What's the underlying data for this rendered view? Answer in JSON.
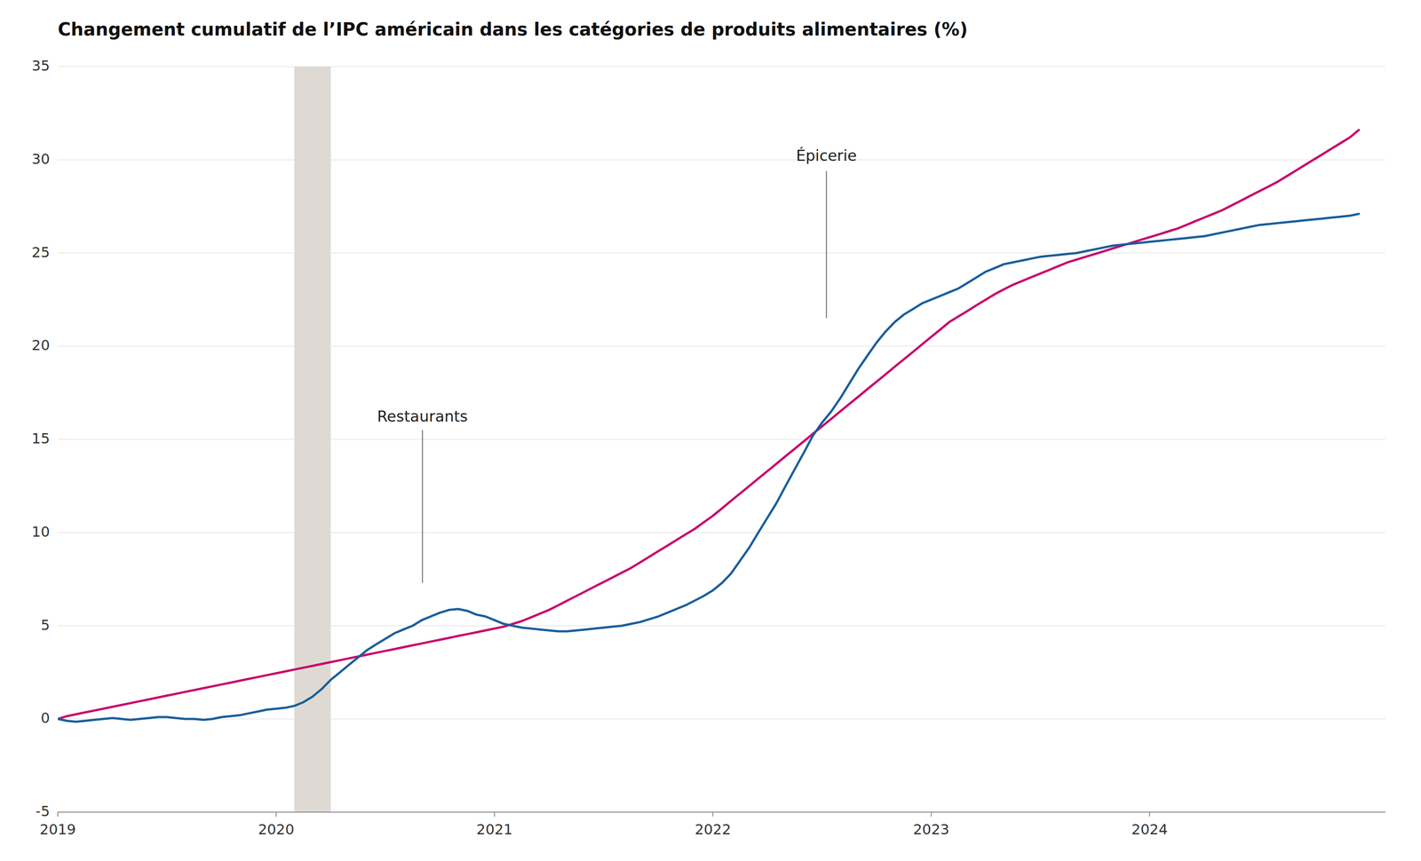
{
  "chart_data": {
    "type": "line",
    "title": "Changement cumulatif de l’IPC américain dans les catégories de produits alimentaires (%)",
    "xlim": [
      2019.0,
      2025.08
    ],
    "xticks": [
      2019,
      2020,
      2021,
      2022,
      2023,
      2024
    ],
    "ylim": [
      -5,
      35
    ],
    "yticks": [
      -5,
      0,
      5,
      10,
      15,
      20,
      25,
      30,
      35
    ],
    "grid": true,
    "spans": [
      {
        "x0": 2020.083,
        "x1": 2020.25,
        "color": "#DEDAD3"
      }
    ],
    "annotations": [
      {
        "text": "Restaurants",
        "x": 2020.67,
        "y": 15.8,
        "line": [
          7.3,
          15.5
        ]
      },
      {
        "text": "Épicerie",
        "x": 2022.52,
        "y": 29.8,
        "line": [
          21.5,
          29.4
        ]
      }
    ],
    "x": [
      2019.0,
      2019.042,
      2019.083,
      2019.125,
      2019.167,
      2019.208,
      2019.25,
      2019.292,
      2019.333,
      2019.375,
      2019.417,
      2019.458,
      2019.5,
      2019.542,
      2019.583,
      2019.625,
      2019.667,
      2019.708,
      2019.75,
      2019.792,
      2019.833,
      2019.875,
      2019.917,
      2019.958,
      2020.0,
      2020.042,
      2020.083,
      2020.125,
      2020.167,
      2020.208,
      2020.25,
      2020.292,
      2020.333,
      2020.375,
      2020.417,
      2020.458,
      2020.5,
      2020.542,
      2020.583,
      2020.625,
      2020.667,
      2020.708,
      2020.75,
      2020.792,
      2020.833,
      2020.875,
      2020.917,
      2020.958,
      2021.0,
      2021.042,
      2021.083,
      2021.125,
      2021.167,
      2021.208,
      2021.25,
      2021.292,
      2021.333,
      2021.375,
      2021.417,
      2021.458,
      2021.5,
      2021.542,
      2021.583,
      2021.625,
      2021.667,
      2021.708,
      2021.75,
      2021.792,
      2021.833,
      2021.875,
      2021.917,
      2021.958,
      2022.0,
      2022.042,
      2022.083,
      2022.125,
      2022.167,
      2022.208,
      2022.25,
      2022.292,
      2022.333,
      2022.375,
      2022.417,
      2022.458,
      2022.5,
      2022.542,
      2022.583,
      2022.625,
      2022.667,
      2022.708,
      2022.75,
      2022.792,
      2022.833,
      2022.875,
      2022.917,
      2022.958,
      2023.0,
      2023.042,
      2023.083,
      2023.125,
      2023.167,
      2023.208,
      2023.25,
      2023.292,
      2023.333,
      2023.375,
      2023.417,
      2023.458,
      2023.5,
      2023.542,
      2023.583,
      2023.625,
      2023.667,
      2023.708,
      2023.75,
      2023.792,
      2023.833,
      2023.875,
      2023.917,
      2023.958,
      2024.0,
      2024.042,
      2024.083,
      2024.125,
      2024.167,
      2024.208,
      2024.25,
      2024.292,
      2024.333,
      2024.375,
      2024.417,
      2024.458,
      2024.5,
      2024.542,
      2024.583,
      2024.625,
      2024.667,
      2024.708,
      2024.75,
      2024.792,
      2024.833,
      2024.875,
      2024.917,
      2024.958
    ],
    "series": [
      {
        "color": "#C8006A",
        "values": [
          0.0,
          0.15,
          0.25,
          0.35,
          0.45,
          0.55,
          0.65,
          0.75,
          0.85,
          0.95,
          1.05,
          1.15,
          1.25,
          1.35,
          1.45,
          1.55,
          1.65,
          1.75,
          1.85,
          1.95,
          2.05,
          2.15,
          2.25,
          2.35,
          2.45,
          2.55,
          2.65,
          2.75,
          2.85,
          2.95,
          3.05,
          3.15,
          3.25,
          3.35,
          3.45,
          3.55,
          3.65,
          3.75,
          3.85,
          3.95,
          4.05,
          4.15,
          4.25,
          4.35,
          4.45,
          4.55,
          4.65,
          4.75,
          4.85,
          4.95,
          5.1,
          5.25,
          5.45,
          5.65,
          5.85,
          6.1,
          6.35,
          6.6,
          6.85,
          7.1,
          7.35,
          7.6,
          7.85,
          8.1,
          8.4,
          8.7,
          9.0,
          9.3,
          9.6,
          9.9,
          10.2,
          10.55,
          10.9,
          11.3,
          11.7,
          12.1,
          12.5,
          12.9,
          13.3,
          13.7,
          14.1,
          14.5,
          14.9,
          15.3,
          15.7,
          16.1,
          16.5,
          16.9,
          17.3,
          17.7,
          18.1,
          18.5,
          18.9,
          19.3,
          19.7,
          20.1,
          20.5,
          20.9,
          21.3,
          21.6,
          21.9,
          22.2,
          22.5,
          22.8,
          23.05,
          23.3,
          23.5,
          23.7,
          23.9,
          24.1,
          24.3,
          24.5,
          24.65,
          24.8,
          24.95,
          25.1,
          25.25,
          25.4,
          25.55,
          25.7,
          25.85,
          26.0,
          26.15,
          26.3,
          26.5,
          26.7,
          26.9,
          27.1,
          27.3,
          27.55,
          27.8,
          28.05,
          28.3,
          28.55,
          28.8,
          29.1,
          29.4,
          29.7,
          30.0,
          30.3,
          30.6,
          30.9,
          31.2,
          31.6
        ]
      },
      {
        "color": "#1A5E9A",
        "values": [
          0.0,
          -0.1,
          -0.15,
          -0.1,
          -0.05,
          0.0,
          0.05,
          0.0,
          -0.05,
          0.0,
          0.05,
          0.1,
          0.1,
          0.05,
          0.0,
          0.0,
          -0.05,
          0.0,
          0.1,
          0.15,
          0.2,
          0.3,
          0.4,
          0.5,
          0.55,
          0.6,
          0.7,
          0.9,
          1.2,
          1.6,
          2.1,
          2.5,
          2.9,
          3.3,
          3.7,
          4.0,
          4.3,
          4.6,
          4.8,
          5.0,
          5.3,
          5.5,
          5.7,
          5.85,
          5.9,
          5.8,
          5.6,
          5.5,
          5.3,
          5.1,
          5.0,
          4.9,
          4.85,
          4.8,
          4.75,
          4.7,
          4.7,
          4.75,
          4.8,
          4.85,
          4.9,
          4.95,
          5.0,
          5.1,
          5.2,
          5.35,
          5.5,
          5.7,
          5.9,
          6.1,
          6.35,
          6.6,
          6.9,
          7.3,
          7.8,
          8.5,
          9.2,
          10.0,
          10.8,
          11.6,
          12.5,
          13.4,
          14.3,
          15.2,
          15.9,
          16.5,
          17.2,
          18.0,
          18.8,
          19.5,
          20.2,
          20.8,
          21.3,
          21.7,
          22.0,
          22.3,
          22.5,
          22.7,
          22.9,
          23.1,
          23.4,
          23.7,
          24.0,
          24.2,
          24.4,
          24.5,
          24.6,
          24.7,
          24.8,
          24.85,
          24.9,
          24.95,
          25.0,
          25.1,
          25.2,
          25.3,
          25.4,
          25.45,
          25.5,
          25.55,
          25.6,
          25.65,
          25.7,
          25.75,
          25.8,
          25.85,
          25.9,
          26.0,
          26.1,
          26.2,
          26.3,
          26.4,
          26.5,
          26.55,
          26.6,
          26.65,
          26.7,
          26.75,
          26.8,
          26.85,
          26.9,
          26.95,
          27.0,
          27.1
        ]
      }
    ]
  }
}
